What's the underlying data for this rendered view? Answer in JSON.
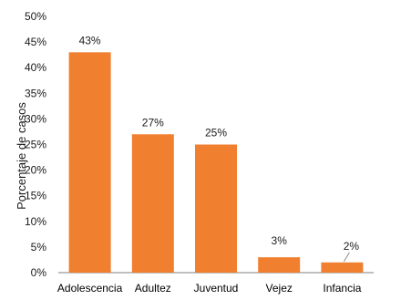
{
  "chart_data": {
    "type": "bar",
    "title": "",
    "xlabel": "",
    "ylabel": "Porcentaje de casos",
    "categories": [
      "Adolescencia",
      "Adultez",
      "Juventud",
      "Vejez",
      "Infancia"
    ],
    "values": [
      43,
      27,
      25,
      3,
      2
    ],
    "value_labels": [
      "43%",
      "27%",
      "25%",
      "3%",
      "2%"
    ],
    "ylim": [
      0,
      50
    ],
    "yticks": [
      0,
      5,
      10,
      15,
      20,
      25,
      30,
      35,
      40,
      45,
      50
    ],
    "ytick_labels": [
      "0%",
      "5%",
      "10%",
      "15%",
      "20%",
      "25%",
      "30%",
      "35%",
      "40%",
      "45%",
      "50%"
    ],
    "grid": false,
    "legend": "none",
    "bar_color": "#f07f30",
    "axis_color": "#7f7f7f",
    "leader_line_color": "#8c8c8c"
  }
}
